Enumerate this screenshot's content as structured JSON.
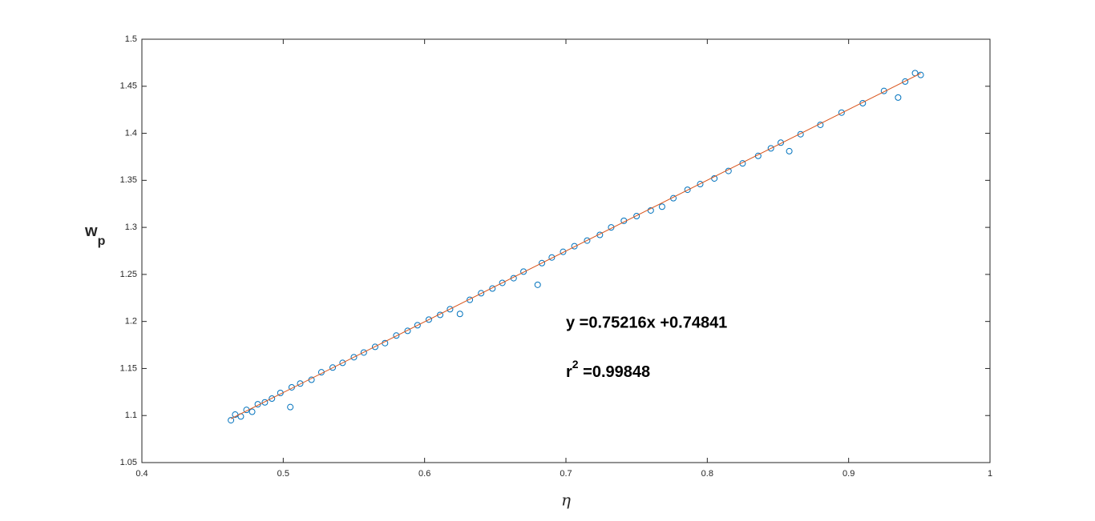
{
  "chart_data": {
    "type": "scatter",
    "xlabel": "η",
    "ylabel": {
      "base": "w",
      "sub": "p"
    },
    "annotations": {
      "equation": "y =0.75216x +0.74841",
      "r2": {
        "base": "r",
        "sup": "2",
        "text": " =0.99848"
      }
    },
    "xlim": [
      0.4,
      1
    ],
    "xticks": [
      0.4,
      0.5,
      0.6,
      0.7,
      0.8,
      0.9,
      1
    ],
    "ylim": [
      1.05,
      1.5
    ],
    "yticks": [
      1.05,
      1.1,
      1.15,
      1.2,
      1.25,
      1.3,
      1.35,
      1.4,
      1.45,
      1.5
    ],
    "grid": false,
    "series": [
      {
        "kind": "markers",
        "color": "#0072bd",
        "x": [
          0.463,
          0.466,
          0.47,
          0.474,
          0.478,
          0.482,
          0.487,
          0.492,
          0.498,
          0.505,
          0.506,
          0.512,
          0.52,
          0.527,
          0.535,
          0.542,
          0.55,
          0.557,
          0.565,
          0.572,
          0.58,
          0.588,
          0.595,
          0.603,
          0.611,
          0.618,
          0.625,
          0.632,
          0.64,
          0.648,
          0.655,
          0.663,
          0.67,
          0.68,
          0.683,
          0.69,
          0.698,
          0.706,
          0.715,
          0.724,
          0.732,
          0.741,
          0.75,
          0.76,
          0.768,
          0.776,
          0.786,
          0.795,
          0.805,
          0.815,
          0.825,
          0.836,
          0.845,
          0.852,
          0.858,
          0.866,
          0.88,
          0.895,
          0.91,
          0.925,
          0.935,
          0.94,
          0.947,
          0.951
        ],
        "values": [
          1.095,
          1.101,
          1.099,
          1.106,
          1.104,
          1.112,
          1.114,
          1.118,
          1.124,
          1.109,
          1.13,
          1.134,
          1.138,
          1.146,
          1.151,
          1.156,
          1.162,
          1.167,
          1.173,
          1.177,
          1.185,
          1.19,
          1.196,
          1.202,
          1.207,
          1.213,
          1.208,
          1.223,
          1.23,
          1.235,
          1.241,
          1.246,
          1.253,
          1.239,
          1.262,
          1.268,
          1.274,
          1.28,
          1.286,
          1.292,
          1.3,
          1.307,
          1.312,
          1.318,
          1.322,
          1.331,
          1.34,
          1.346,
          1.352,
          1.36,
          1.368,
          1.376,
          1.384,
          1.39,
          1.381,
          1.399,
          1.409,
          1.422,
          1.432,
          1.445,
          1.438,
          1.455,
          1.464,
          1.462
        ]
      },
      {
        "kind": "line",
        "color": "#d95319",
        "x": [
          0.463,
          0.951
        ],
        "values": [
          1.0966,
          1.4637
        ]
      }
    ]
  }
}
